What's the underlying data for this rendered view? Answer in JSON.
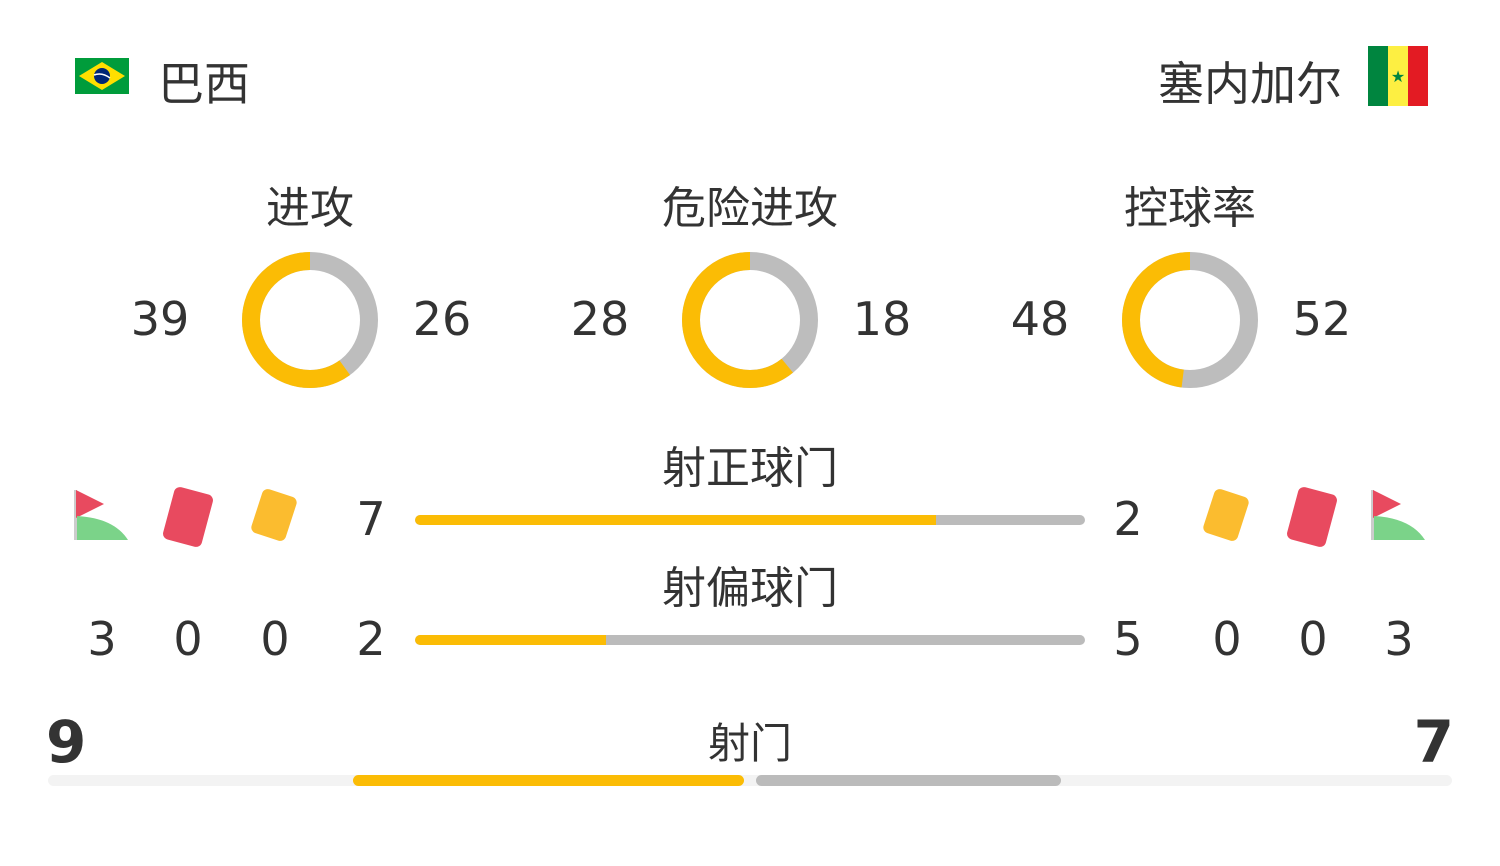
{
  "home": {
    "name": "巴西",
    "flag": "brazil-flag"
  },
  "away": {
    "name": "塞内加尔",
    "flag": "senegal-flag"
  },
  "colors": {
    "home": "#fbbc05",
    "away": "#bdbdbd"
  },
  "donuts": [
    {
      "title": "进攻",
      "home": 39,
      "away": 26
    },
    {
      "title": "危险进攻",
      "home": 28,
      "away": 18
    },
    {
      "title": "控球率",
      "home": 48,
      "away": 52
    }
  ],
  "bars": [
    {
      "title": "射正球门",
      "home": 7,
      "away": 2
    },
    {
      "title": "射偏球门",
      "home": 2,
      "away": 5
    }
  ],
  "home_counts": {
    "corners": 3,
    "red_cards": 0,
    "yellow_cards": 0
  },
  "away_counts": {
    "corners": 3,
    "red_cards": 0,
    "yellow_cards": 0
  },
  "shots": {
    "title": "射门",
    "home": 9,
    "away": 7
  }
}
